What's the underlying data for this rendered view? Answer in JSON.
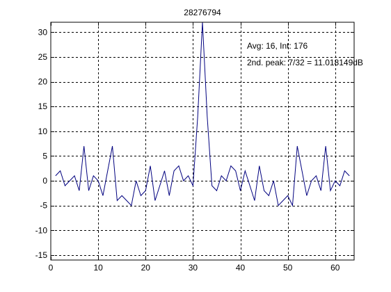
{
  "chart_data": {
    "type": "line",
    "title": "28276794",
    "xlabel": "",
    "ylabel": "",
    "xlim": [
      0,
      64
    ],
    "ylim": [
      -16,
      32
    ],
    "xticks": [
      0,
      10,
      20,
      30,
      40,
      50,
      60
    ],
    "yticks": [
      -15,
      -10,
      -5,
      0,
      5,
      10,
      15,
      20,
      25,
      30
    ],
    "grid": true,
    "series": [
      {
        "color": "#00007f",
        "x": [
          1,
          2,
          3,
          4,
          5,
          6,
          7,
          8,
          9,
          10,
          11,
          12,
          13,
          14,
          15,
          16,
          17,
          18,
          19,
          20,
          21,
          22,
          23,
          24,
          25,
          26,
          27,
          28,
          29,
          30,
          31,
          32,
          33,
          34,
          35,
          36,
          37,
          38,
          39,
          40,
          41,
          42,
          43,
          44,
          45,
          46,
          47,
          48,
          49,
          50,
          51,
          52,
          53,
          54,
          55,
          56,
          57,
          58,
          59,
          60,
          61,
          62,
          63
        ],
        "y": [
          1,
          2,
          -1,
          0,
          1,
          -2,
          7,
          -2,
          1,
          0,
          -3,
          2,
          7,
          -4,
          -3,
          -4,
          -5,
          0,
          -3,
          -2,
          3,
          -4,
          -1,
          2,
          -3,
          2,
          3,
          0,
          1,
          -1,
          13,
          32,
          13,
          -1,
          -2,
          1,
          0,
          3,
          2,
          -2,
          2,
          -1,
          -4,
          3,
          -2,
          -3,
          0,
          -5,
          -4,
          -3,
          -5,
          7,
          2,
          -3,
          0,
          1,
          -2,
          7,
          -2,
          0,
          -1,
          2,
          1
        ]
      }
    ],
    "annotations": [
      {
        "text": "Avg: 16, Int: 176"
      },
      {
        "text": "2nd. peak: 7/32 = 11.018149dB"
      }
    ]
  }
}
